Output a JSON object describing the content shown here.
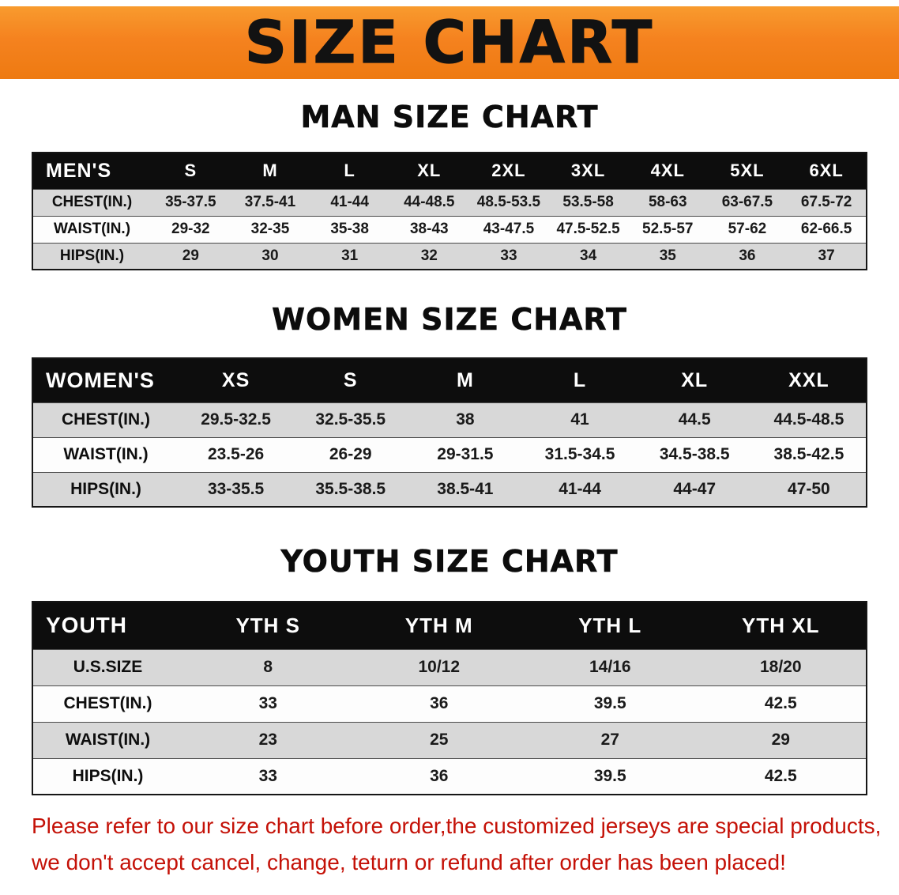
{
  "banner": {
    "title": "SIZE CHART",
    "bg_color": "#f5821f",
    "text_color": "#121212"
  },
  "sections": {
    "men": {
      "heading": "MAN SIZE CHART",
      "table": {
        "header": [
          "MEN'S",
          "S",
          "M",
          "L",
          "XL",
          "2XL",
          "3XL",
          "4XL",
          "5XL",
          "6XL"
        ],
        "rows": [
          [
            "CHEST(IN.)",
            "35-37.5",
            "37.5-41",
            "41-44",
            "44-48.5",
            "48.5-53.5",
            "53.5-58",
            "58-63",
            "63-67.5",
            "67.5-72"
          ],
          [
            "WAIST(IN.)",
            "29-32",
            "32-35",
            "35-38",
            "38-43",
            "43-47.5",
            "47.5-52.5",
            "52.5-57",
            "57-62",
            "62-66.5"
          ],
          [
            "HIPS(IN.)",
            "29",
            "30",
            "31",
            "32",
            "33",
            "34",
            "35",
            "36",
            "37"
          ]
        ]
      }
    },
    "women": {
      "heading": "WOMEN SIZE CHART",
      "table": {
        "header": [
          "WOMEN'S",
          "XS",
          "S",
          "M",
          "L",
          "XL",
          "XXL"
        ],
        "rows": [
          [
            "CHEST(IN.)",
            "29.5-32.5",
            "32.5-35.5",
            "38",
            "41",
            "44.5",
            "44.5-48.5"
          ],
          [
            "WAIST(IN.)",
            "23.5-26",
            "26-29",
            "29-31.5",
            "31.5-34.5",
            "34.5-38.5",
            "38.5-42.5"
          ],
          [
            "HIPS(IN.)",
            "33-35.5",
            "35.5-38.5",
            "38.5-41",
            "41-44",
            "44-47",
            "47-50"
          ]
        ]
      }
    },
    "youth": {
      "heading": "YOUTH SIZE CHART",
      "table": {
        "header": [
          "YOUTH",
          "YTH S",
          "YTH M",
          "YTH L",
          "YTH XL"
        ],
        "rows": [
          [
            "U.S.SIZE",
            "8",
            "10/12",
            "14/16",
            "18/20"
          ],
          [
            "CHEST(IN.)",
            "33",
            "36",
            "39.5",
            "42.5"
          ],
          [
            "WAIST(IN.)",
            "23",
            "25",
            "27",
            "29"
          ],
          [
            "HIPS(IN.)",
            "33",
            "36",
            "39.5",
            "42.5"
          ]
        ]
      }
    }
  },
  "disclaimer": {
    "line1": "Please refer to our size chart before order,the customized jerseys are special products,",
    "line2": "we don't accept cancel, change, teturn or refund after order has been placed!",
    "text_color": "#c41107"
  },
  "colors": {
    "header_band": "#0d0d0d",
    "row_gray": "#d8d8d8",
    "row_white": "#fdfdfd"
  }
}
